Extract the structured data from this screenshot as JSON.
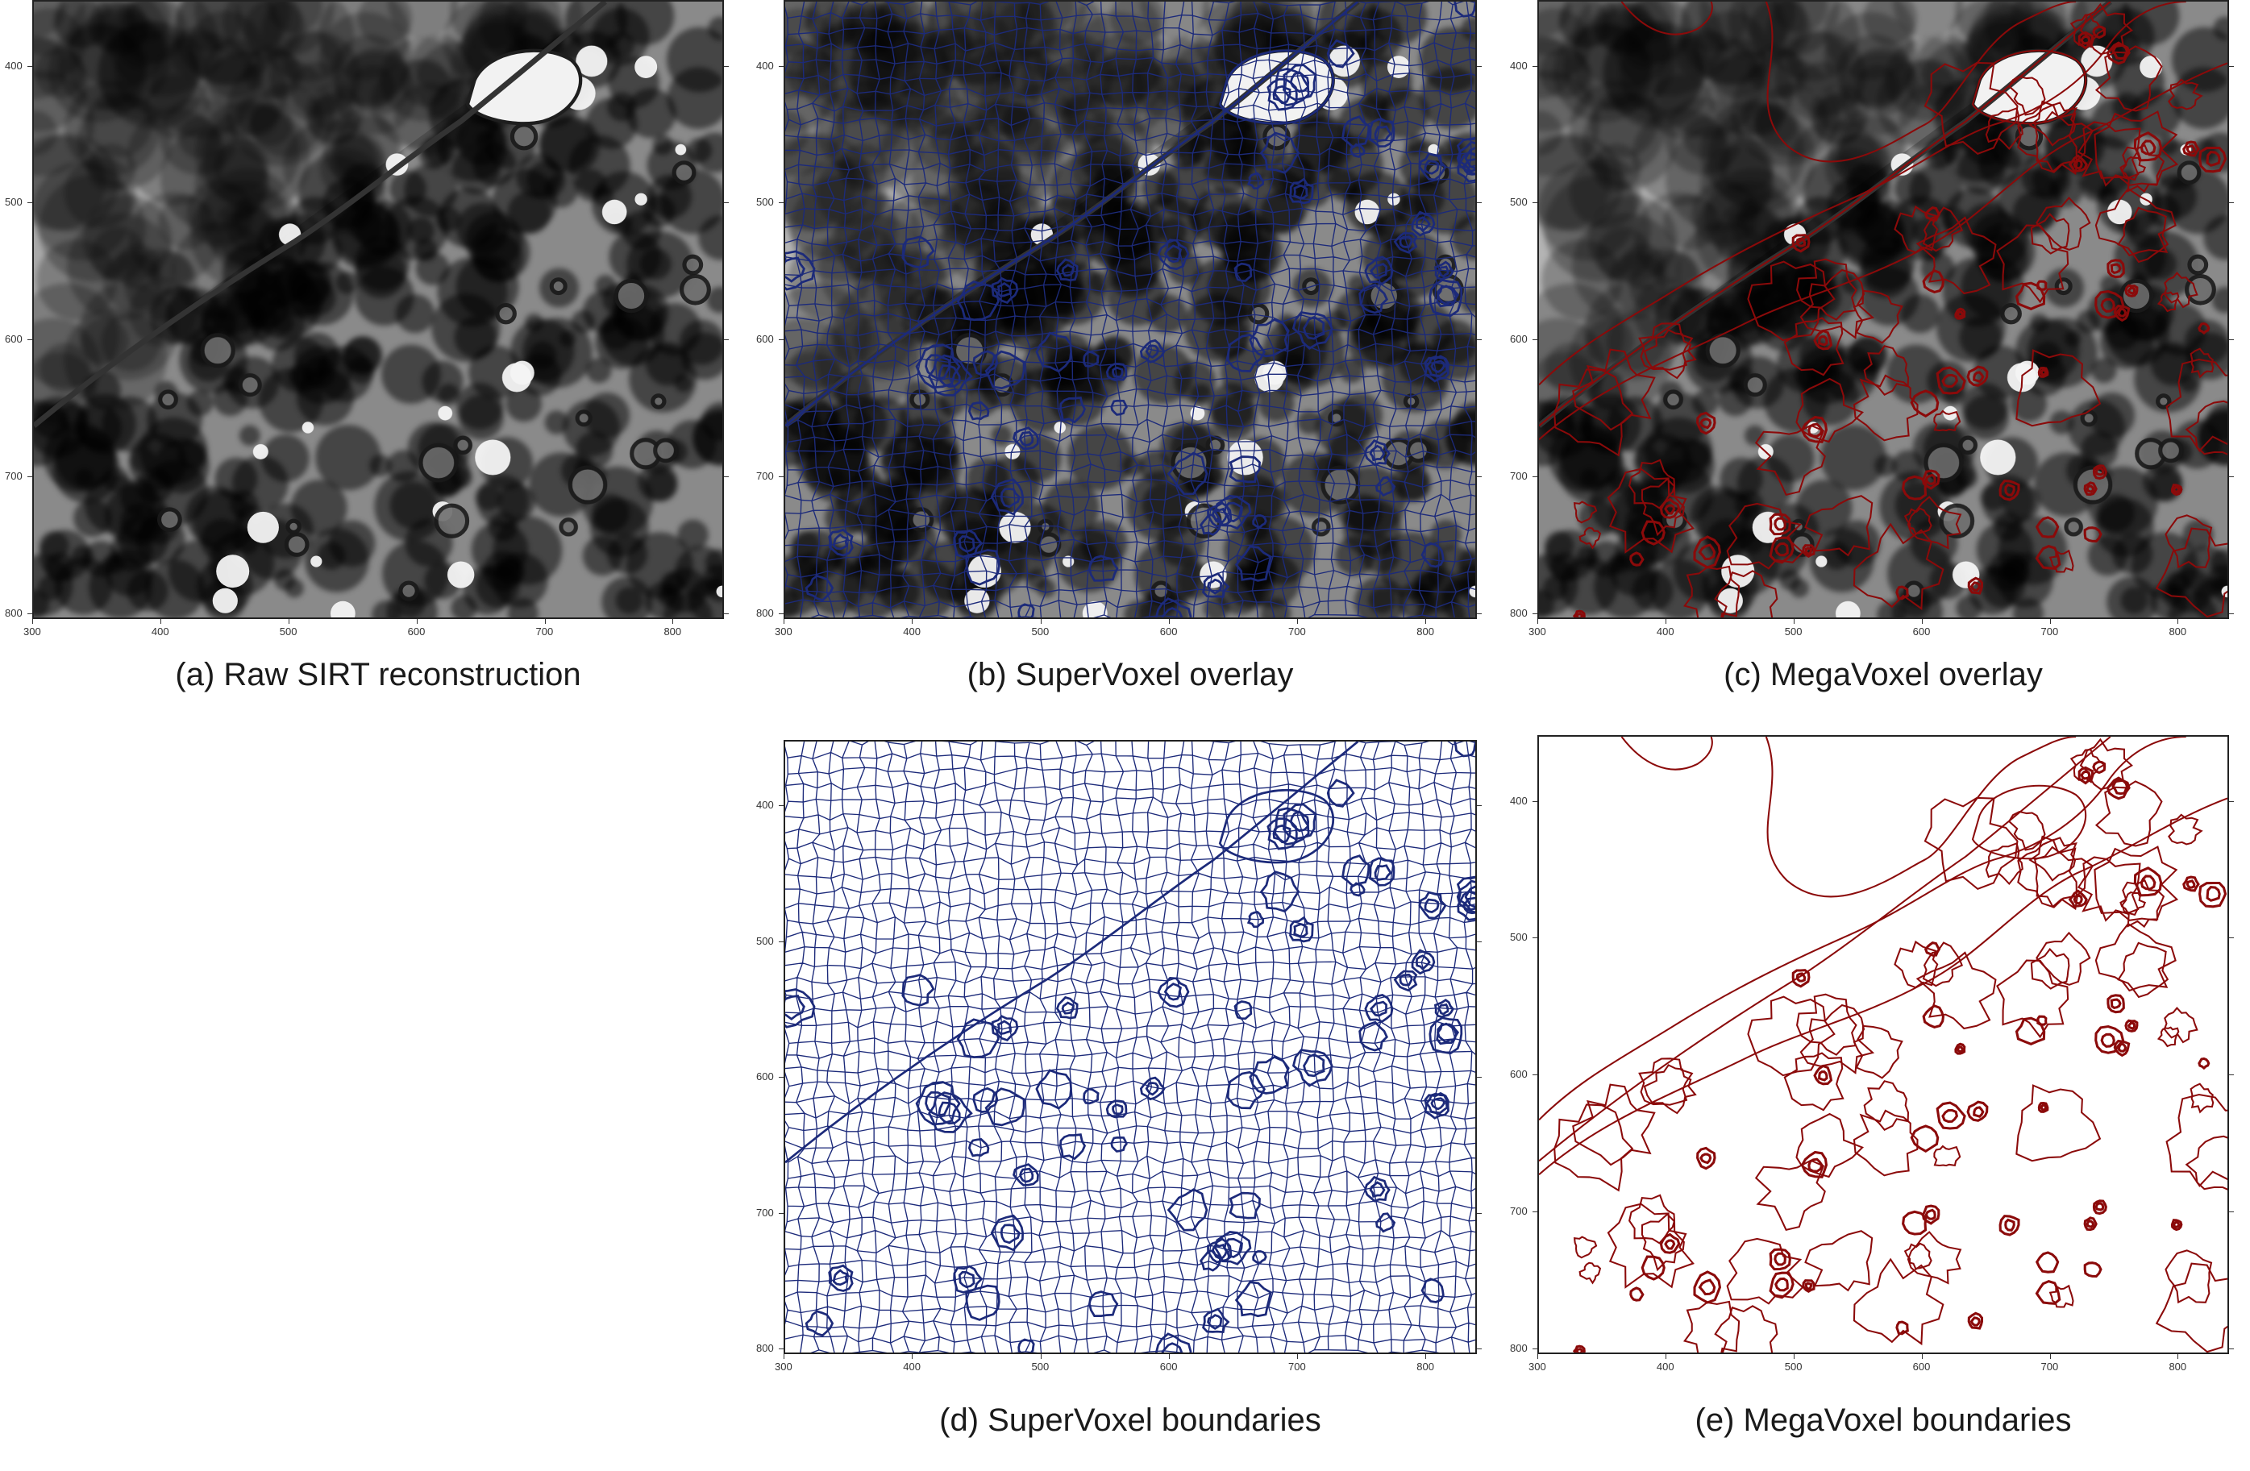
{
  "figure": {
    "panels": [
      {
        "id": "a",
        "caption": "(a) Raw SIRT reconstruction",
        "kind": "raw",
        "line_color": ""
      },
      {
        "id": "b",
        "caption": "(b) SuperVoxel overlay",
        "kind": "overlay",
        "line_color": "#1c2a7a"
      },
      {
        "id": "c",
        "caption": "(c) MegaVoxel overlay",
        "kind": "overlay",
        "line_color": "#8b0a0a"
      },
      {
        "id": "d",
        "caption": "(d) SuperVoxel boundaries",
        "kind": "boundaries",
        "line_color": "#1c2a7a"
      },
      {
        "id": "e",
        "caption": "(e) MegaVoxel boundaries",
        "kind": "boundaries",
        "line_color": "#8b0a0a"
      }
    ],
    "x_ticks": [
      "300",
      "400",
      "500",
      "600",
      "700",
      "800"
    ],
    "y_ticks": [
      "400",
      "500",
      "600",
      "700",
      "800"
    ],
    "x_range": [
      300,
      840
    ],
    "y_range": [
      352,
      804
    ]
  }
}
